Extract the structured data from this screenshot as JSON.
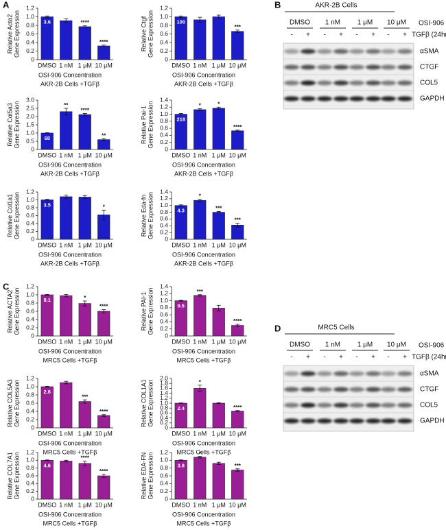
{
  "panel_labels": [
    "A",
    "B",
    "C",
    "D"
  ],
  "chart_data": [
    {
      "type": "bar",
      "ylabel": [
        "Relative Acta2",
        "Gene Expression"
      ],
      "xlabel": "OSI-906 Concentration",
      "subtitle": "AKR-2B Cells +TGFβ",
      "categories": [
        "DMSO",
        "1 nM",
        "1 μM",
        "10 μM"
      ],
      "values": [
        1.0,
        0.91,
        0.77,
        0.32
      ],
      "errors": [
        0.02,
        0.04,
        0.02,
        0.02
      ],
      "significance": [
        null,
        null,
        "****",
        "****"
      ],
      "inner_label": "3.6",
      "color": "#1c1cc8",
      "ylim": [
        0,
        1.2
      ],
      "yticks": [
        0,
        0.2,
        0.4,
        0.6,
        0.8,
        {
          "value": 1,
          "label": "1.0"
        },
        1.2
      ]
    },
    {
      "type": "bar",
      "ylabel": [
        "Relative Ctgf",
        "Gene Expression"
      ],
      "xlabel": "OSI-906 Concentration",
      "subtitle": "AKR-2B Cells +TGFβ",
      "categories": [
        "DMSO",
        "1 nM",
        "1 μM",
        "10 μM"
      ],
      "values": [
        1.0,
        0.93,
        1.0,
        0.66
      ],
      "errors": [
        0.02,
        0.06,
        0.04,
        0.03
      ],
      "significance": [
        null,
        null,
        null,
        "***"
      ],
      "inner_label": "100",
      "color": "#1c1cc8",
      "ylim": [
        0,
        1.2
      ],
      "yticks": [
        0,
        0.2,
        0.4,
        0.6,
        0.8,
        {
          "value": 1,
          "label": "1.0"
        },
        1.2
      ]
    },
    {
      "type": "bar",
      "ylabel": [
        "Relative Col5a3",
        "Gene Expression"
      ],
      "xlabel": "OSI-906 Concentration",
      "subtitle": "AKR-2B Cells +TGFβ",
      "categories": [
        "DMSO",
        "1 nM",
        "1 μM",
        "10 μM"
      ],
      "values": [
        1.0,
        2.3,
        2.12,
        0.6
      ],
      "errors": [
        0.02,
        0.2,
        0.07,
        0.06
      ],
      "significance": [
        null,
        "**",
        "****",
        "**"
      ],
      "inner_label": "68",
      "color": "#1c1cc8",
      "ylim": [
        0,
        3
      ],
      "yticks": [
        0,
        0.5,
        {
          "value": 1,
          "label": "1.0"
        },
        1.5,
        {
          "value": 2,
          "label": "2.0"
        },
        2.5,
        {
          "value": 3,
          "label": "3.0"
        }
      ]
    },
    {
      "type": "bar",
      "ylabel": [
        "Relative Pai-1",
        "Gene Expression"
      ],
      "xlabel": "OSI-906 Concentration",
      "subtitle": "AKR-2B Cells +TGFβ",
      "categories": [
        "DMSO",
        "1 nM",
        "1 μM",
        "10 μM"
      ],
      "values": [
        1.0,
        1.13,
        1.17,
        0.53
      ],
      "errors": [
        0.02,
        0.03,
        0.03,
        0.02
      ],
      "significance": [
        null,
        "*",
        "*",
        "****"
      ],
      "inner_label": "218",
      "color": "#1c1cc8",
      "ylim": [
        0,
        1.4
      ],
      "yticks": [
        0,
        0.2,
        0.4,
        0.6,
        0.8,
        {
          "value": 1,
          "label": "1.0"
        },
        1.2,
        1.4
      ]
    },
    {
      "type": "bar",
      "ylabel": [
        "Relative Col1a1",
        "Gene Expression"
      ],
      "xlabel": "OSI-906 Concentration",
      "subtitle": "AKR-2B Cells +TGFβ",
      "categories": [
        "DMSO",
        "1 nM",
        "1 μM",
        "10 μM"
      ],
      "values": [
        1.0,
        1.08,
        1.07,
        0.62
      ],
      "errors": [
        0.02,
        0.04,
        0.04,
        0.12
      ],
      "significance": [
        null,
        null,
        null,
        "*"
      ],
      "inner_label": "3.5",
      "color": "#1c1cc8",
      "ylim": [
        0,
        1.2
      ],
      "yticks": [
        0,
        0.2,
        0.4,
        0.6,
        0.8,
        {
          "value": 1,
          "label": "1.0"
        },
        1.2
      ]
    },
    {
      "type": "bar",
      "ylabel": [
        "Relative Eda-fn",
        "Gene Expression"
      ],
      "xlabel": "OSI-906 Concentration",
      "subtitle": "AKR-2B Cells +TGFβ",
      "categories": [
        "DMSO",
        "1 nM",
        "1 μM",
        "10 μM"
      ],
      "values": [
        1.0,
        1.15,
        0.8,
        0.42
      ],
      "errors": [
        0.02,
        0.04,
        0.02,
        0.06
      ],
      "significance": [
        null,
        "*",
        "***",
        "***"
      ],
      "inner_label": "4.3",
      "color": "#1c1cc8",
      "ylim": [
        0,
        1.4
      ],
      "yticks": [
        0,
        0.2,
        0.4,
        0.6,
        0.8,
        {
          "value": 1,
          "label": "1.0"
        },
        1.2,
        1.4
      ]
    },
    {
      "type": "bar",
      "ylabel": [
        "Relative ACTA2",
        "Gene Expression"
      ],
      "xlabel": "OSI-906 Concentration",
      "subtitle": "MRC5 Cells +TGFβ",
      "categories": [
        "DMSO",
        "1 nM",
        "1 μM",
        "10 μM"
      ],
      "values": [
        1.0,
        0.98,
        0.79,
        0.6
      ],
      "errors": [
        0.01,
        0.03,
        0.06,
        0.04
      ],
      "significance": [
        null,
        null,
        "*",
        "****"
      ],
      "inner_label": "8.1",
      "color": "#9a1e96",
      "ylim": [
        0,
        1.2
      ],
      "yticks": [
        0,
        0.2,
        0.4,
        0.6,
        0.8,
        {
          "value": 1,
          "label": "1.0"
        },
        1.2
      ]
    },
    {
      "type": "bar",
      "ylabel": [
        "Relative PAI-1",
        "Gene Expression"
      ],
      "xlabel": "OSI-906 Concentration",
      "subtitle": "MRC5 Cells +TGFβ",
      "categories": [
        "DMSO",
        "1 nM",
        "1 μM",
        "10 μM"
      ],
      "values": [
        1.0,
        1.15,
        0.79,
        0.3
      ],
      "errors": [
        0.01,
        0.02,
        0.08,
        0.03
      ],
      "significance": [
        null,
        "***",
        null,
        "****"
      ],
      "inner_label": "9.5",
      "color": "#9a1e96",
      "ylim": [
        0,
        1.4
      ],
      "yticks": [
        0,
        0.2,
        0.4,
        0.6,
        0.8,
        {
          "value": 1,
          "label": "1.0"
        },
        1.2,
        1.4
      ]
    },
    {
      "type": "bar",
      "ylabel": [
        "Relative COL5A3",
        "Gene Expression"
      ],
      "xlabel": "OSI-906 Concentration",
      "subtitle": "MRC5 Cells +TGFβ",
      "categories": [
        "DMSO",
        "1 nM",
        "1 μM",
        "10 μM"
      ],
      "values": [
        1.0,
        1.1,
        0.64,
        0.3
      ],
      "errors": [
        0.01,
        0.03,
        0.04,
        0.02
      ],
      "significance": [
        null,
        null,
        "***",
        "****"
      ],
      "inner_label": "2.6",
      "color": "#9a1e96",
      "ylim": [
        0,
        1.2
      ],
      "yticks": [
        0,
        0.2,
        0.4,
        0.6,
        0.8,
        {
          "value": 1,
          "label": "1.0"
        },
        1.2
      ]
    },
    {
      "type": "bar",
      "ylabel": [
        "Relative COL1A1",
        "Gene Expression"
      ],
      "xlabel": "OSI-906 Concentration",
      "subtitle": "MRC5 Cells +TGFβ",
      "categories": [
        "DMSO",
        "1 nM",
        "1 μM",
        "10 μM"
      ],
      "values": [
        1.0,
        1.6,
        1.0,
        0.68
      ],
      "errors": [
        0.01,
        0.13,
        0.02,
        0.02
      ],
      "significance": [
        null,
        "*",
        null,
        "****"
      ],
      "inner_label": "2.4",
      "color": "#9a1e96",
      "ylim": [
        0,
        2
      ],
      "yticks": [
        0,
        0.2,
        0.4,
        0.6,
        0.8,
        {
          "value": 1,
          "label": "1.0"
        },
        1.2,
        1.4,
        1.6,
        1.8,
        {
          "value": 2,
          "label": "2.0"
        }
      ]
    },
    {
      "type": "bar",
      "ylabel": [
        "Relative COL7A1",
        "Gene Expression"
      ],
      "xlabel": "OSI-906 Concentration",
      "subtitle": "MRC5 Cells +TGFβ",
      "categories": [
        "DMSO",
        "1 nM",
        "1 μM",
        "10 μM"
      ],
      "values": [
        1.0,
        0.98,
        0.92,
        0.6
      ],
      "errors": [
        0.01,
        0.02,
        0.06,
        0.04
      ],
      "significance": [
        null,
        null,
        "****",
        "****"
      ],
      "inner_label": "4.6",
      "color": "#9a1e96",
      "ylim": [
        0,
        1.2
      ],
      "yticks": [
        0,
        0.2,
        0.4,
        0.6,
        0.8,
        {
          "value": 1,
          "label": "1.0"
        },
        1.2
      ]
    },
    {
      "type": "bar",
      "ylabel": [
        "Relative EDA-FN",
        "Gene Expression"
      ],
      "xlabel": "OSI-906 Concentration",
      "subtitle": "MRC5 Cells +TGFβ",
      "categories": [
        "DMSO",
        "1 nM",
        "1 μM",
        "10 μM"
      ],
      "values": [
        1.0,
        1.08,
        0.92,
        0.75
      ],
      "errors": [
        0.01,
        0.02,
        0.03,
        0.03
      ],
      "significance": [
        null,
        "*",
        null,
        "***"
      ],
      "inner_label": "3.8",
      "color": "#9a1e96",
      "ylim": [
        0,
        1.2
      ],
      "yticks": [
        0,
        0.2,
        0.4,
        0.6,
        0.8,
        {
          "value": 1,
          "label": "1.0"
        },
        1.2
      ]
    }
  ],
  "blots": [
    {
      "title": "AKR-2B Cells",
      "groups": [
        "DMSO",
        "1 nM",
        "1 μM",
        "10 μM"
      ],
      "treatment": "OSI-906",
      "signs": [
        "-",
        "+",
        "-",
        "+",
        "-",
        "+",
        "-",
        "+"
      ],
      "stimulus": "TGFβ (24hr)",
      "bands": [
        "αSMA",
        "CTGF",
        "COL5",
        "GAPDH"
      ]
    },
    {
      "title": "MRC5 Cells",
      "groups": [
        "DMSO",
        "1 nM",
        "1 μM",
        "10 μM"
      ],
      "treatment": "OSI-906",
      "signs": [
        "-",
        "+",
        "-",
        "+",
        "-",
        "+",
        "-",
        "+"
      ],
      "stimulus": "TGFβ (24hr)",
      "bands": [
        "αSMA",
        "CTGF",
        "COL5",
        "GAPDH"
      ]
    }
  ]
}
